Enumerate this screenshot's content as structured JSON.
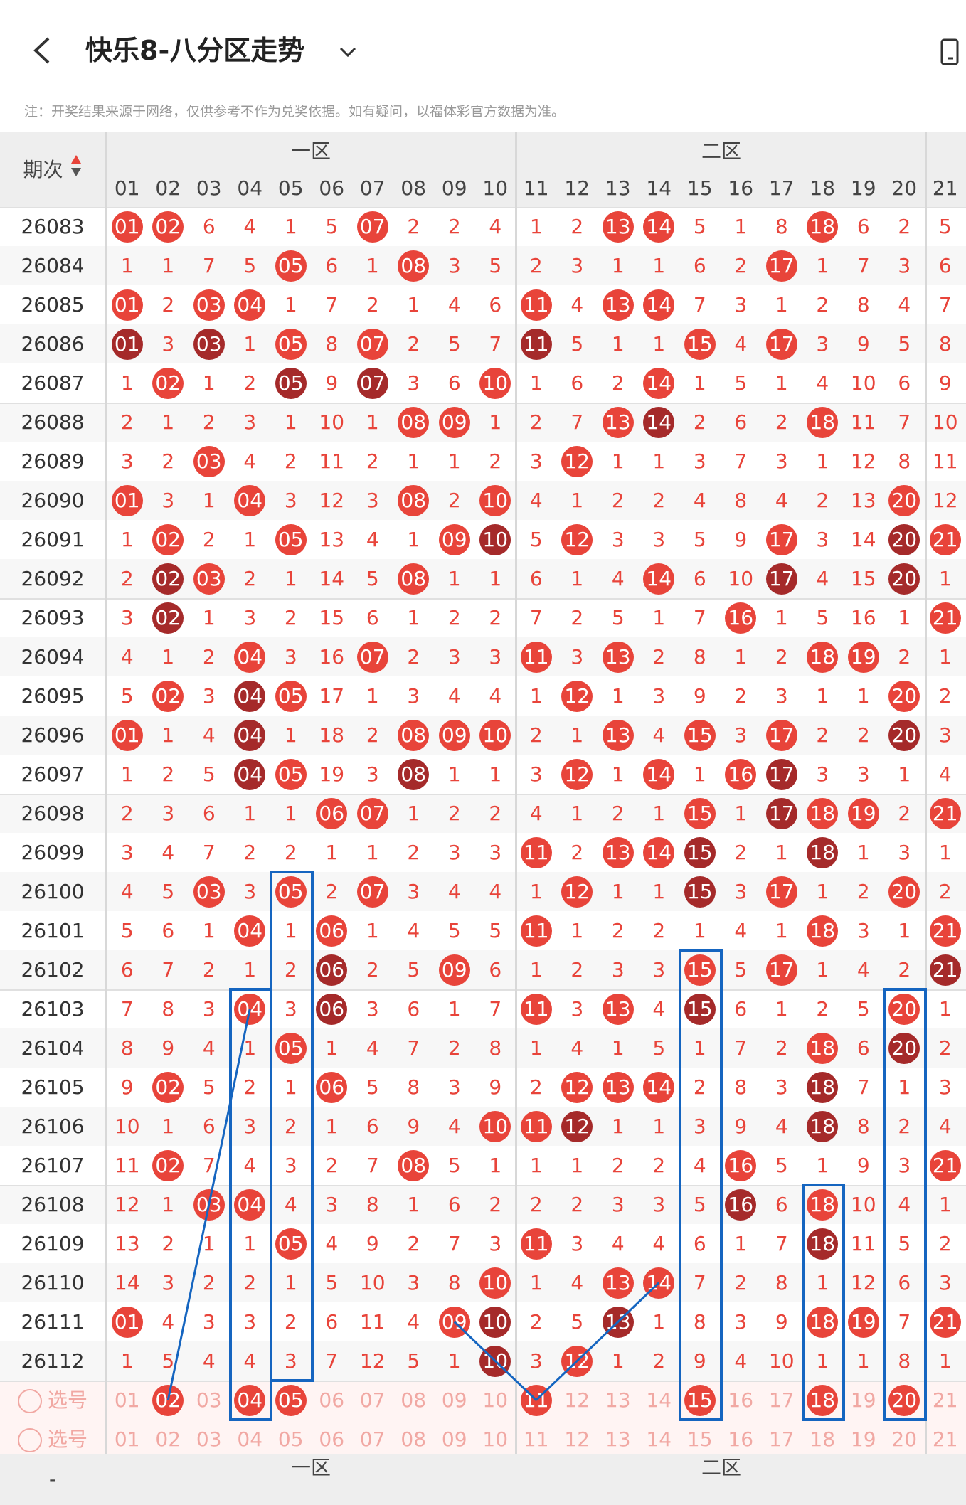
{
  "header": {
    "title": "快乐8-八分区走势"
  },
  "note": "注：开奖结果来源于网络，仅供参考不作为兑奖依据。如有疑问，以福体彩官方数据为准。",
  "table": {
    "issue_header": "期次",
    "zone_labels": [
      "一区",
      "二区"
    ],
    "columns": [
      "01",
      "02",
      "03",
      "04",
      "05",
      "06",
      "07",
      "08",
      "09",
      "10",
      "11",
      "12",
      "13",
      "14",
      "15",
      "16",
      "17",
      "18",
      "19",
      "20",
      "21"
    ],
    "rows": [
      {
        "issue": "26083",
        "cells": [
          "01",
          "02",
          "6",
          "4",
          "1",
          "5",
          "07",
          "2",
          "2",
          "4",
          "1",
          "2",
          "13",
          "14",
          "5",
          "1",
          "8",
          "18",
          "6",
          "2",
          "5"
        ]
      },
      {
        "issue": "26084",
        "cells": [
          "1",
          "1",
          "7",
          "5",
          "05",
          "6",
          "1",
          "08",
          "3",
          "5",
          "2",
          "3",
          "1",
          "1",
          "6",
          "2",
          "17",
          "1",
          "7",
          "3",
          "6"
        ]
      },
      {
        "issue": "26085",
        "cells": [
          "01",
          "2",
          "03",
          "04",
          "1",
          "7",
          "2",
          "1",
          "4",
          "6",
          "11",
          "4",
          "13",
          "14",
          "7",
          "3",
          "1",
          "2",
          "8",
          "4",
          "7"
        ]
      },
      {
        "issue": "26086",
        "cells": [
          "01",
          "3",
          "03",
          "1",
          "05",
          "8",
          "07",
          "2",
          "5",
          "7",
          "11",
          "5",
          "1",
          "1",
          "15",
          "4",
          "17",
          "3",
          "9",
          "5",
          "8"
        ]
      },
      {
        "issue": "26087",
        "cells": [
          "1",
          "02",
          "1",
          "2",
          "05",
          "9",
          "07",
          "3",
          "6",
          "10",
          "1",
          "6",
          "2",
          "14",
          "1",
          "5",
          "1",
          "4",
          "10",
          "6",
          "9"
        ]
      },
      {
        "issue": "26088",
        "cells": [
          "2",
          "1",
          "2",
          "3",
          "1",
          "10",
          "1",
          "08",
          "09",
          "1",
          "2",
          "7",
          "13",
          "14",
          "2",
          "6",
          "2",
          "18",
          "11",
          "7",
          "10"
        ]
      },
      {
        "issue": "26089",
        "cells": [
          "3",
          "2",
          "03",
          "4",
          "2",
          "11",
          "2",
          "1",
          "1",
          "2",
          "3",
          "12",
          "1",
          "1",
          "3",
          "7",
          "3",
          "1",
          "12",
          "8",
          "11"
        ]
      },
      {
        "issue": "26090",
        "cells": [
          "01",
          "3",
          "1",
          "04",
          "3",
          "12",
          "3",
          "08",
          "2",
          "10",
          "4",
          "1",
          "2",
          "2",
          "4",
          "8",
          "4",
          "2",
          "13",
          "20",
          "12"
        ]
      },
      {
        "issue": "26091",
        "cells": [
          "1",
          "02",
          "2",
          "1",
          "05",
          "13",
          "4",
          "1",
          "09",
          "10",
          "5",
          "12",
          "3",
          "3",
          "5",
          "9",
          "17",
          "3",
          "14",
          "20",
          "21"
        ]
      },
      {
        "issue": "26092",
        "cells": [
          "2",
          "02",
          "03",
          "2",
          "1",
          "14",
          "5",
          "08",
          "1",
          "1",
          "6",
          "1",
          "4",
          "14",
          "6",
          "10",
          "17",
          "4",
          "15",
          "20",
          "1"
        ]
      },
      {
        "issue": "26093",
        "cells": [
          "3",
          "02",
          "1",
          "3",
          "2",
          "15",
          "6",
          "1",
          "2",
          "2",
          "7",
          "2",
          "5",
          "1",
          "7",
          "16",
          "1",
          "5",
          "16",
          "1",
          "21"
        ]
      },
      {
        "issue": "26094",
        "cells": [
          "4",
          "1",
          "2",
          "04",
          "3",
          "16",
          "07",
          "2",
          "3",
          "3",
          "11",
          "3",
          "13",
          "2",
          "8",
          "1",
          "2",
          "18",
          "19",
          "2",
          "1"
        ]
      },
      {
        "issue": "26095",
        "cells": [
          "5",
          "02",
          "3",
          "04",
          "05",
          "17",
          "1",
          "3",
          "4",
          "4",
          "1",
          "12",
          "1",
          "3",
          "9",
          "2",
          "3",
          "1",
          "1",
          "20",
          "2"
        ]
      },
      {
        "issue": "26096",
        "cells": [
          "01",
          "1",
          "4",
          "04",
          "1",
          "18",
          "2",
          "08",
          "09",
          "10",
          "2",
          "1",
          "13",
          "4",
          "15",
          "3",
          "17",
          "2",
          "2",
          "20",
          "3"
        ]
      },
      {
        "issue": "26097",
        "cells": [
          "1",
          "2",
          "5",
          "04",
          "05",
          "19",
          "3",
          "08",
          "1",
          "1",
          "3",
          "12",
          "1",
          "14",
          "1",
          "16",
          "17",
          "3",
          "3",
          "1",
          "4"
        ]
      },
      {
        "issue": "26098",
        "cells": [
          "2",
          "3",
          "6",
          "1",
          "1",
          "06",
          "07",
          "1",
          "2",
          "2",
          "4",
          "1",
          "2",
          "1",
          "15",
          "1",
          "17",
          "18",
          "19",
          "2",
          "21"
        ]
      },
      {
        "issue": "26099",
        "cells": [
          "3",
          "4",
          "7",
          "2",
          "2",
          "1",
          "1",
          "2",
          "3",
          "3",
          "11",
          "2",
          "13",
          "14",
          "15",
          "2",
          "1",
          "18",
          "1",
          "3",
          "1"
        ]
      },
      {
        "issue": "26100",
        "cells": [
          "4",
          "5",
          "03",
          "3",
          "05",
          "2",
          "07",
          "3",
          "4",
          "4",
          "1",
          "12",
          "1",
          "1",
          "15",
          "3",
          "17",
          "1",
          "2",
          "20",
          "2"
        ]
      },
      {
        "issue": "26101",
        "cells": [
          "5",
          "6",
          "1",
          "04",
          "1",
          "06",
          "1",
          "4",
          "5",
          "5",
          "11",
          "1",
          "2",
          "2",
          "1",
          "4",
          "1",
          "18",
          "3",
          "1",
          "21"
        ]
      },
      {
        "issue": "26102",
        "cells": [
          "6",
          "7",
          "2",
          "1",
          "2",
          "06",
          "2",
          "5",
          "09",
          "6",
          "1",
          "2",
          "3",
          "3",
          "15",
          "5",
          "17",
          "1",
          "4",
          "2",
          "21"
        ]
      },
      {
        "issue": "26103",
        "cells": [
          "7",
          "8",
          "3",
          "04",
          "3",
          "06",
          "3",
          "6",
          "1",
          "7",
          "11",
          "3",
          "13",
          "4",
          "15",
          "6",
          "1",
          "2",
          "5",
          "20",
          "1"
        ]
      },
      {
        "issue": "26104",
        "cells": [
          "8",
          "9",
          "4",
          "1",
          "05",
          "1",
          "4",
          "7",
          "2",
          "8",
          "1",
          "4",
          "1",
          "5",
          "1",
          "7",
          "2",
          "18",
          "6",
          "20",
          "2"
        ]
      },
      {
        "issue": "26105",
        "cells": [
          "9",
          "02",
          "5",
          "2",
          "1",
          "06",
          "5",
          "8",
          "3",
          "9",
          "2",
          "12",
          "13",
          "14",
          "2",
          "8",
          "3",
          "18",
          "7",
          "1",
          "3"
        ]
      },
      {
        "issue": "26106",
        "cells": [
          "10",
          "1",
          "6",
          "3",
          "2",
          "1",
          "6",
          "9",
          "4",
          "10",
          "11",
          "12",
          "1",
          "1",
          "3",
          "9",
          "4",
          "18",
          "8",
          "2",
          "4"
        ]
      },
      {
        "issue": "26107",
        "cells": [
          "11",
          "02",
          "7",
          "4",
          "3",
          "2",
          "7",
          "08",
          "5",
          "1",
          "1",
          "1",
          "2",
          "2",
          "4",
          "16",
          "5",
          "1",
          "9",
          "3",
          "21"
        ]
      },
      {
        "issue": "26108",
        "cells": [
          "12",
          "1",
          "03",
          "04",
          "4",
          "3",
          "8",
          "1",
          "6",
          "2",
          "2",
          "2",
          "3",
          "3",
          "5",
          "16",
          "6",
          "18",
          "10",
          "4",
          "1"
        ]
      },
      {
        "issue": "26109",
        "cells": [
          "13",
          "2",
          "1",
          "1",
          "05",
          "4",
          "9",
          "2",
          "7",
          "3",
          "11",
          "3",
          "4",
          "4",
          "6",
          "1",
          "7",
          "18",
          "11",
          "5",
          "2"
        ]
      },
      {
        "issue": "26110",
        "cells": [
          "14",
          "3",
          "2",
          "2",
          "1",
          "5",
          "10",
          "3",
          "8",
          "10",
          "1",
          "4",
          "13",
          "14",
          "7",
          "2",
          "8",
          "1",
          "12",
          "6",
          "3"
        ]
      },
      {
        "issue": "26111",
        "cells": [
          "01",
          "4",
          "3",
          "3",
          "2",
          "6",
          "11",
          "4",
          "09",
          "10",
          "2",
          "5",
          "13",
          "1",
          "8",
          "3",
          "9",
          "18",
          "19",
          "7",
          "21"
        ]
      },
      {
        "issue": "26112",
        "cells": [
          "1",
          "5",
          "4",
          "4",
          "3",
          "7",
          "12",
          "5",
          "1",
          "10",
          "3",
          "12",
          "1",
          "2",
          "9",
          "4",
          "10",
          "1",
          "1",
          "8",
          "1"
        ]
      }
    ],
    "pick_rows": [
      {
        "label": "选号",
        "cells": [
          "01",
          "02",
          "03",
          "04",
          "05",
          "06",
          "07",
          "08",
          "09",
          "10",
          "11",
          "12",
          "13",
          "14",
          "15",
          "16",
          "17",
          "18",
          "19",
          "20",
          "21"
        ]
      },
      {
        "label": "选号",
        "cells": [
          "01",
          "02",
          "03",
          "04",
          "05",
          "06",
          "07",
          "08",
          "09",
          "10",
          "11",
          "12",
          "13",
          "14",
          "15",
          "16",
          "17",
          "18",
          "19",
          "20",
          "21"
        ]
      }
    ],
    "pick_selected": [
      "02",
      "04",
      "05",
      "11",
      "15",
      "18",
      "20"
    ],
    "footer_dash": "-"
  },
  "colors": {
    "ball_red": "#e8443a",
    "ball_dark": "#a52a2a",
    "number_red": "#e8443a",
    "pick_red": "#f1a8a3",
    "box_blue": "#1565c0",
    "line_blue": "#1565c0",
    "header_gray": "#eeeeee"
  }
}
